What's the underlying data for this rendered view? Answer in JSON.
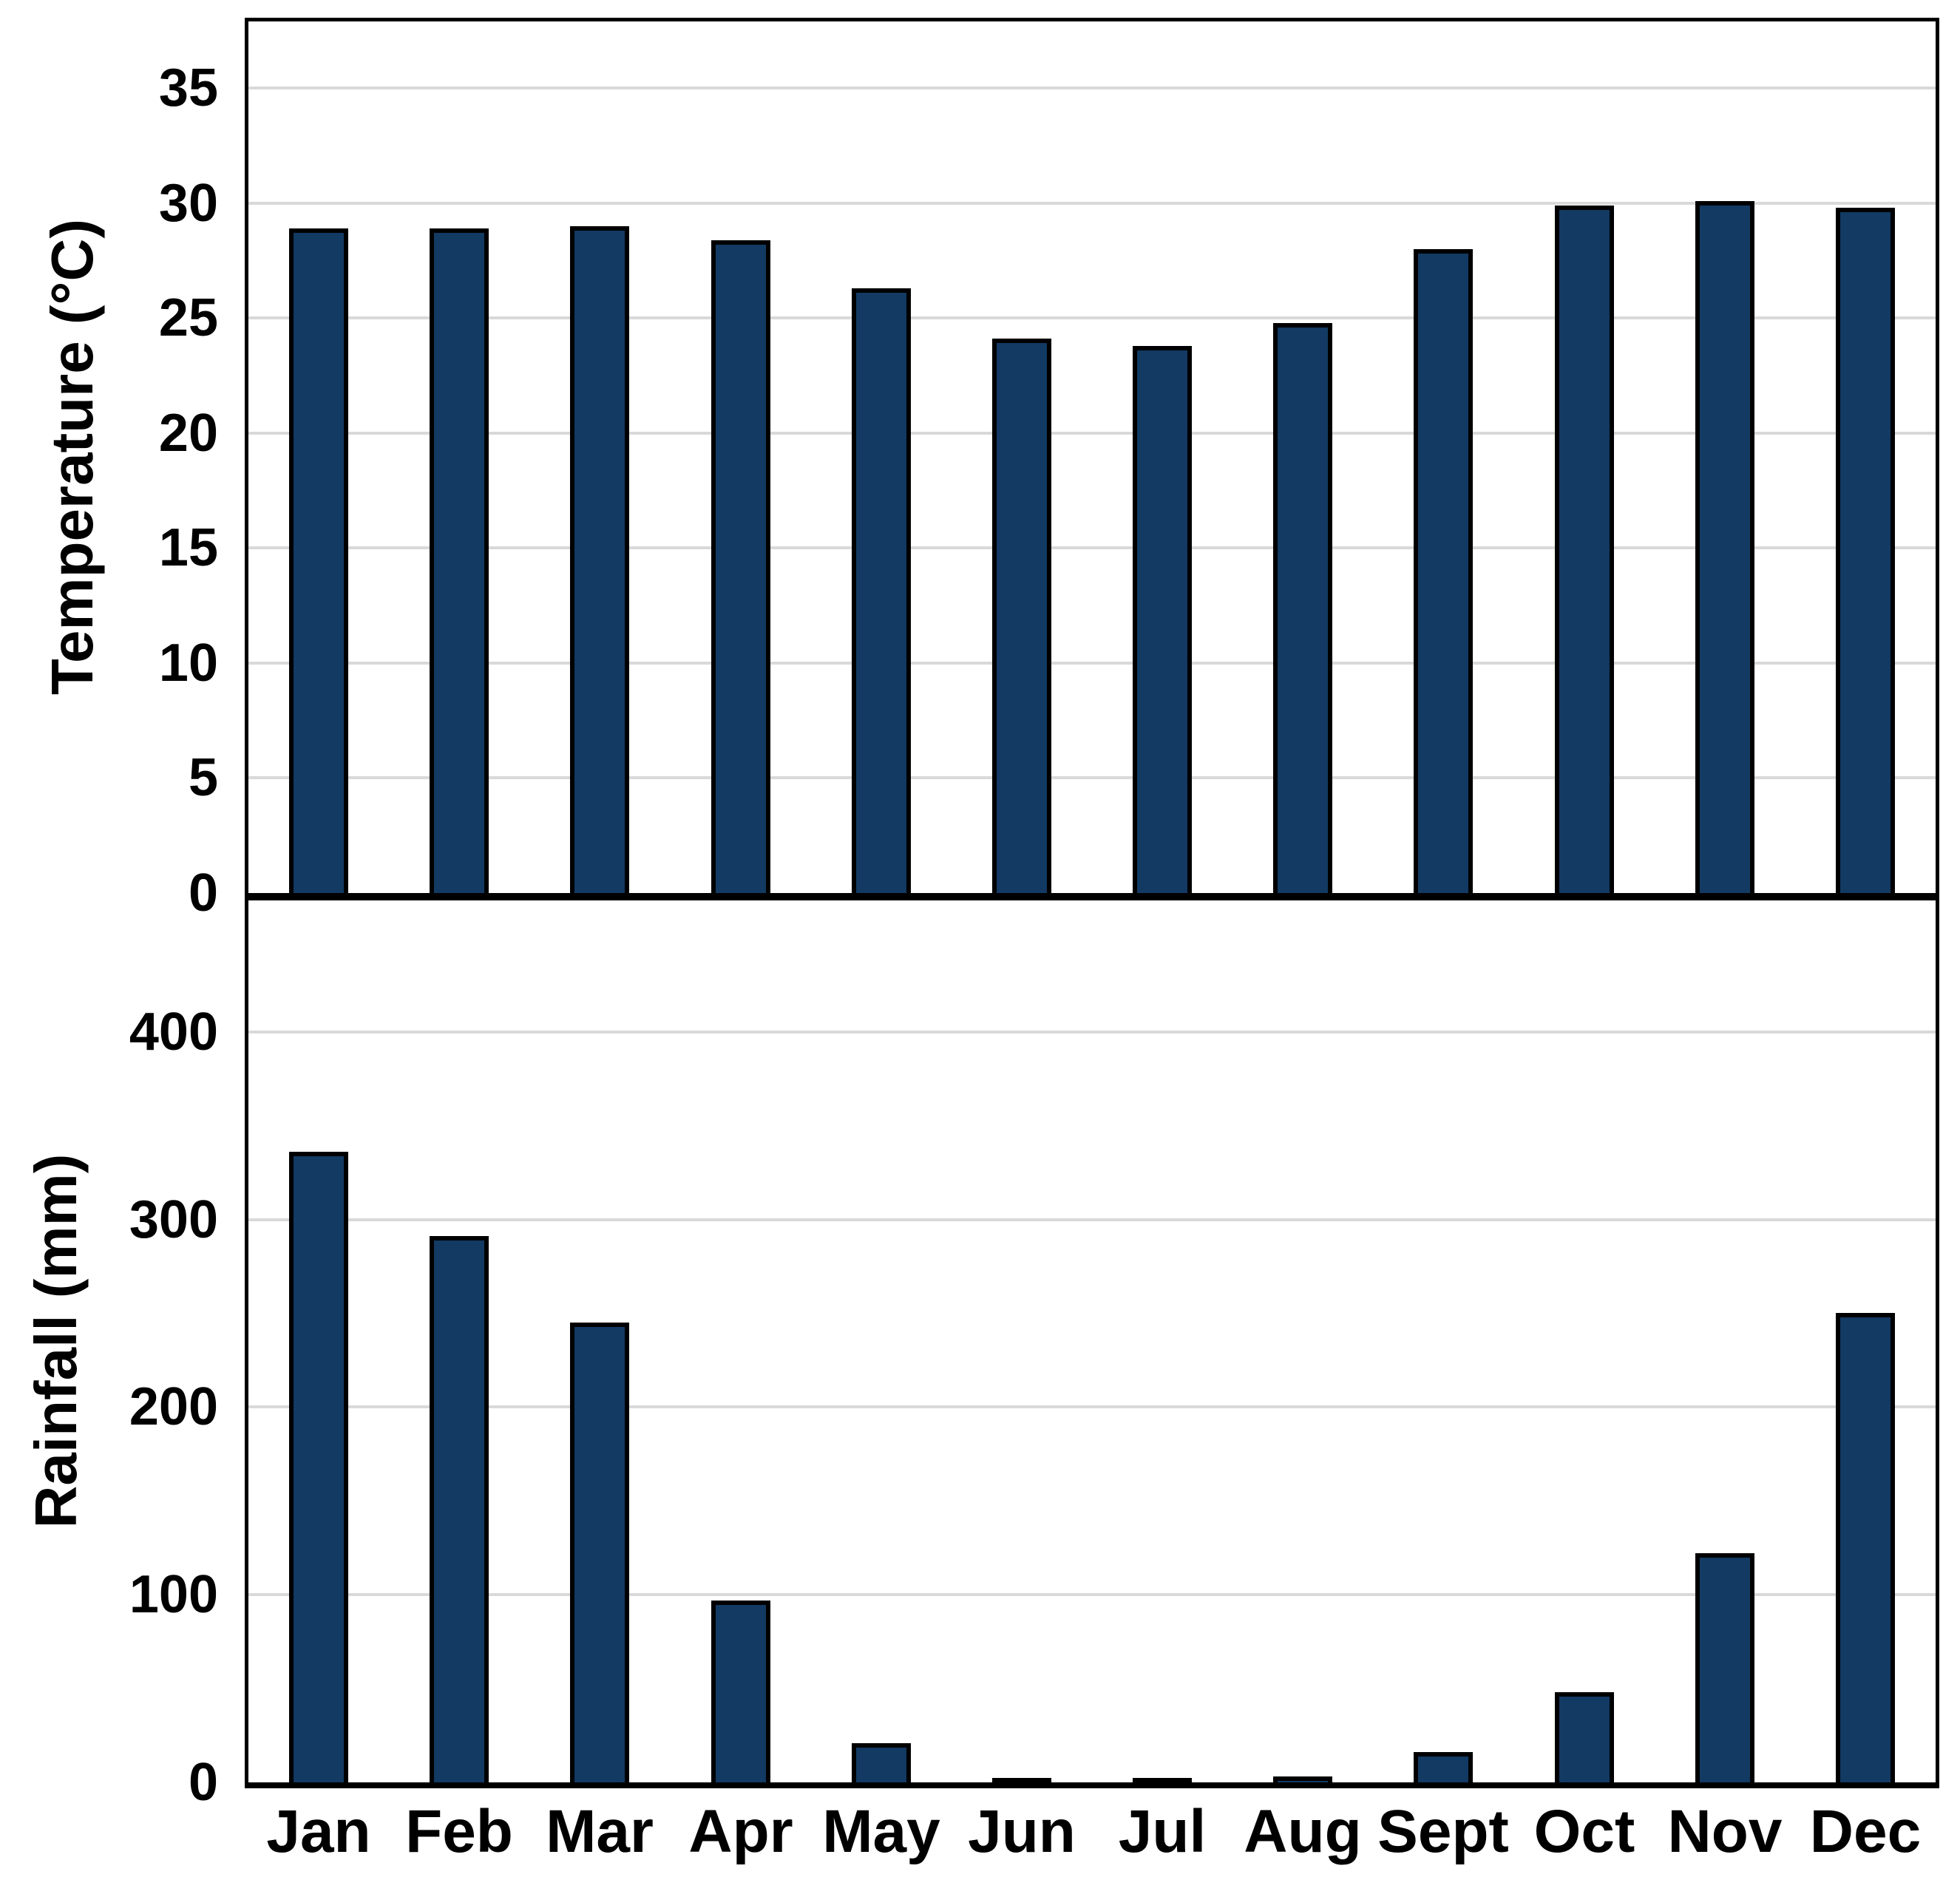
{
  "figure": {
    "description": "Two stacked bar charts sharing month categories: monthly mean temperature (top) and monthly rainfall (bottom)."
  },
  "chart_data": [
    {
      "type": "bar",
      "title": "",
      "ylabel": "Temperature (°C)",
      "xlabel": "",
      "categories": [
        "Jan",
        "Feb",
        "Mar",
        "Apr",
        "May",
        "Jun",
        "Jul",
        "Aug",
        "Sept",
        "Oct",
        "Nov",
        "Dec"
      ],
      "values": [
        28.9,
        28.9,
        29.0,
        28.4,
        26.3,
        24.1,
        23.8,
        24.8,
        28.0,
        29.9,
        30.1,
        29.8
      ],
      "yticks": [
        0,
        5,
        10,
        15,
        20,
        25,
        30,
        35
      ],
      "ylim": [
        0,
        37.9
      ],
      "grid": true,
      "legend_position": "none"
    },
    {
      "type": "bar",
      "title": "",
      "ylabel": "Rainfall (mm)",
      "xlabel": "",
      "categories": [
        "Jan",
        "Feb",
        "Mar",
        "Apr",
        "May",
        "Jun",
        "Jul",
        "Aug",
        "Sept",
        "Oct",
        "Nov",
        "Dec"
      ],
      "values": [
        336,
        291,
        245,
        97,
        21,
        2,
        2,
        3,
        16,
        48,
        122,
        250
      ],
      "yticks": [
        0,
        100,
        200,
        300,
        400
      ],
      "ylim": [
        0,
        470
      ],
      "grid": true,
      "legend_position": "none"
    }
  ],
  "styles": {
    "bar_fill": "#123A63",
    "bar_outline": "#000000",
    "gridline_color": "#D9D9D9",
    "frame_color": "#000000",
    "background": "#FFFFFF",
    "text_color": "#000000"
  }
}
